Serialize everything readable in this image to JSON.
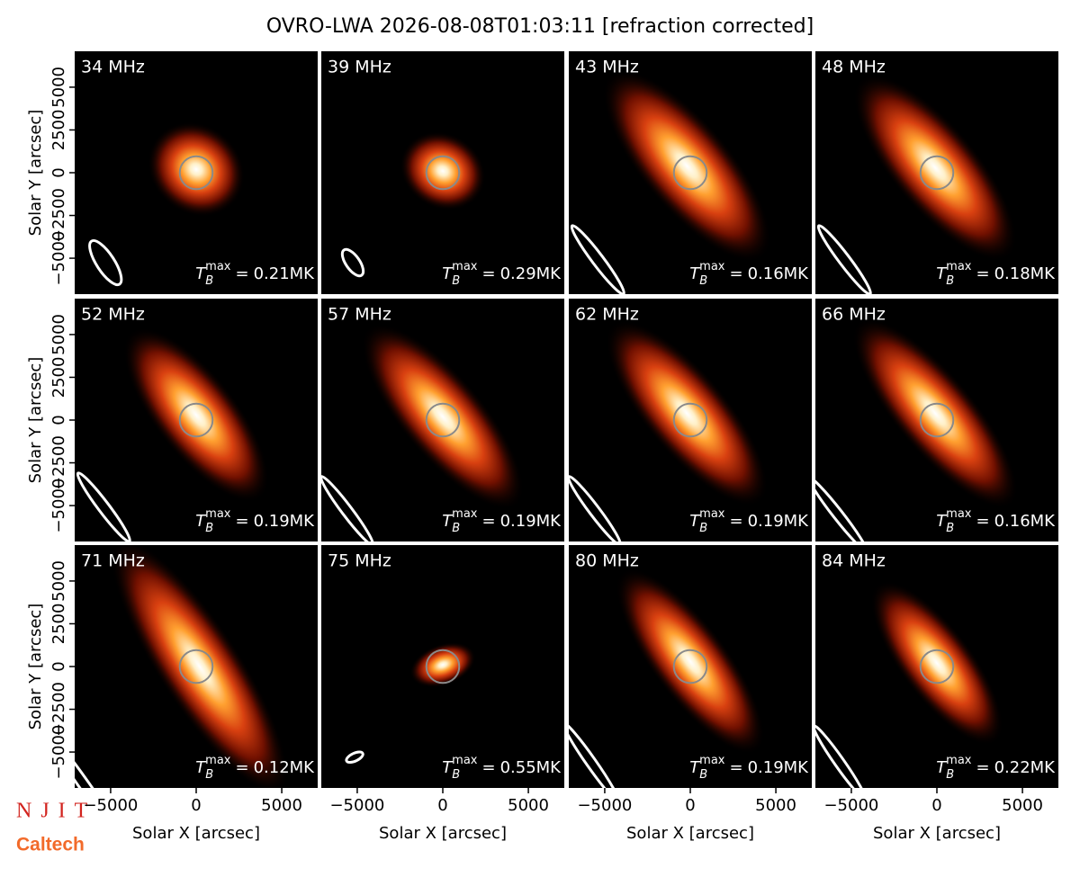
{
  "title": "OVRO-LWA 2026-08-08T01:03:11 [refraction corrected]",
  "logos": [
    "NJIT",
    "Caltech"
  ],
  "tmax_symbol": {
    "base": "T",
    "sub": "B",
    "sup": "max",
    "eq": "="
  },
  "chart_data": [
    {
      "type": "image",
      "label": "34 MHz",
      "tmax": 0.21,
      "tmax_label": "0.21MK",
      "xlim": [
        -7100,
        7100
      ],
      "ylim": [
        -7100,
        7100
      ],
      "source": {
        "x": 0,
        "y": 200,
        "major": 3000,
        "minor": 2600,
        "angle": -40
      },
      "beam": {
        "x": -5300,
        "y": -5260,
        "major": 1500,
        "minor": 520,
        "angle": -57
      },
      "disk_radius": 960,
      "yticks": [
        {
          "value": -5000,
          "label": "−5000"
        },
        {
          "value": -2500,
          "label": "−2500"
        },
        0,
        2500,
        5000
      ],
      "ylabel": "Solar Y [arcsec]"
    },
    {
      "type": "image",
      "label": "39 MHz",
      "tmax": 0.29,
      "tmax_label": "0.29MK",
      "xlim": [
        -7100,
        7100
      ],
      "ylim": [
        -7100,
        7100
      ],
      "source": {
        "x": 0,
        "y": 100,
        "major": 2600,
        "minor": 2200,
        "angle": -30
      },
      "beam": {
        "x": -5260,
        "y": -5260,
        "major": 900,
        "minor": 400,
        "angle": -55
      },
      "disk_radius": 960
    },
    {
      "type": "image",
      "label": "43 MHz",
      "tmax": 0.16,
      "tmax_label": "0.16MK",
      "xlim": [
        -7100,
        7100
      ],
      "ylim": [
        -7100,
        7100
      ],
      "source": {
        "x": -200,
        "y": 400,
        "major": 7000,
        "minor": 2600,
        "angle": -50
      },
      "beam": {
        "x": -5400,
        "y": -5100,
        "major": 2500,
        "minor": 330,
        "angle": -53
      },
      "disk_radius": 960
    },
    {
      "type": "image",
      "label": "48 MHz",
      "tmax": 0.18,
      "tmax_label": "0.18MK",
      "xlim": [
        -7100,
        7100
      ],
      "ylim": [
        -7100,
        7100
      ],
      "source": {
        "x": -100,
        "y": 300,
        "major": 6800,
        "minor": 2500,
        "angle": -50
      },
      "beam": {
        "x": -5400,
        "y": -5100,
        "major": 2500,
        "minor": 320,
        "angle": -53
      },
      "disk_radius": 960
    },
    {
      "type": "image",
      "label": "52 MHz",
      "tmax": 0.19,
      "tmax_label": "0.19MK",
      "xlim": [
        -7100,
        7100
      ],
      "ylim": [
        -7100,
        7100
      ],
      "source": {
        "x": 0,
        "y": 300,
        "major": 6200,
        "minor": 2400,
        "angle": -52
      },
      "beam": {
        "x": -5400,
        "y": -5100,
        "major": 2500,
        "minor": 320,
        "angle": -53
      },
      "disk_radius": 960,
      "yticks": [
        {
          "value": -5000,
          "label": "−5000"
        },
        {
          "value": -2500,
          "label": "−2500"
        },
        0,
        2500,
        5000
      ],
      "ylabel": "Solar Y [arcsec]"
    },
    {
      "type": "image",
      "label": "57 MHz",
      "tmax": 0.19,
      "tmax_label": "0.19MK",
      "xlim": [
        -7100,
        7100
      ],
      "ylim": [
        -7100,
        7100
      ],
      "source": {
        "x": 0,
        "y": 200,
        "major": 6800,
        "minor": 2400,
        "angle": -50
      },
      "beam": {
        "x": -5600,
        "y": -5300,
        "major": 2500,
        "minor": 300,
        "angle": -53
      },
      "disk_radius": 960
    },
    {
      "type": "image",
      "label": "62 MHz",
      "tmax": 0.19,
      "tmax_label": "0.19MK",
      "xlim": [
        -7100,
        7100
      ],
      "ylim": [
        -7100,
        7100
      ],
      "source": {
        "x": -200,
        "y": 400,
        "major": 6800,
        "minor": 2400,
        "angle": -50
      },
      "beam": {
        "x": -5600,
        "y": -5300,
        "major": 2500,
        "minor": 300,
        "angle": -53
      },
      "disk_radius": 960
    },
    {
      "type": "image",
      "label": "66 MHz",
      "tmax": 0.16,
      "tmax_label": "0.16MK",
      "xlim": [
        -7100,
        7100
      ],
      "ylim": [
        -7100,
        7100
      ],
      "source": {
        "x": -100,
        "y": 400,
        "major": 7000,
        "minor": 2300,
        "angle": -50
      },
      "beam": {
        "x": -5800,
        "y": -5500,
        "major": 2700,
        "minor": 280,
        "angle": -52
      },
      "disk_radius": 960
    },
    {
      "type": "image",
      "label": "71 MHz",
      "tmax": 0.12,
      "tmax_label": "0.12MK",
      "xlim": [
        -7100,
        7100
      ],
      "ylim": [
        -7100,
        7100
      ],
      "source": {
        "x": 200,
        "y": 0,
        "major": 8800,
        "minor": 2400,
        "angle": -57
      },
      "beam": {
        "x": -6500,
        "y": -7000,
        "major": 3800,
        "minor": 300,
        "angle": -55
      },
      "disk_radius": 960,
      "yticks": [
        {
          "value": -5000,
          "label": "−5000"
        },
        {
          "value": -2500,
          "label": "−2500"
        },
        0,
        2500,
        5000
      ],
      "ylabel": "Solar Y [arcsec]",
      "xticks": [
        {
          "value": -5000,
          "label": "−5000"
        },
        0,
        5000
      ],
      "xlabel": "Solar X [arcsec]"
    },
    {
      "type": "image",
      "label": "75 MHz",
      "tmax": 0.55,
      "tmax_label": "0.55MK",
      "xlim": [
        -7100,
        7100
      ],
      "ylim": [
        -7100,
        7100
      ],
      "source": {
        "x": 0,
        "y": 100,
        "major": 2000,
        "minor": 1200,
        "angle": 20
      },
      "beam": {
        "x": -5150,
        "y": -5300,
        "major": 520,
        "minor": 230,
        "angle": 25
      },
      "disk_radius": 960,
      "xticks": [
        {
          "value": -5000,
          "label": "−5000"
        },
        0,
        5000
      ],
      "xlabel": "Solar X [arcsec]"
    },
    {
      "type": "image",
      "label": "80 MHz",
      "tmax": 0.19,
      "tmax_label": "0.19MK",
      "xlim": [
        -7100,
        7100
      ],
      "ylim": [
        -7100,
        7100
      ],
      "source": {
        "x": 0,
        "y": 300,
        "major": 6600,
        "minor": 2200,
        "angle": -53
      },
      "beam": {
        "x": -5800,
        "y": -5600,
        "major": 2800,
        "minor": 280,
        "angle": -55
      },
      "disk_radius": 960,
      "xticks": [
        {
          "value": -5000,
          "label": "−5000"
        },
        0,
        5000
      ],
      "xlabel": "Solar X [arcsec]"
    },
    {
      "type": "image",
      "label": "84 MHz",
      "tmax": 0.22,
      "tmax_label": "0.22MK",
      "xlim": [
        -7100,
        7100
      ],
      "ylim": [
        -7100,
        7100
      ],
      "source": {
        "x": 0,
        "y": 200,
        "major": 5800,
        "minor": 2100,
        "angle": -53
      },
      "beam": {
        "x": -5700,
        "y": -5600,
        "major": 2600,
        "minor": 280,
        "angle": -55
      },
      "disk_radius": 960,
      "xticks": [
        {
          "value": -5000,
          "label": "−5000"
        },
        0,
        5000
      ],
      "xlabel": "Solar X [arcsec]"
    }
  ]
}
